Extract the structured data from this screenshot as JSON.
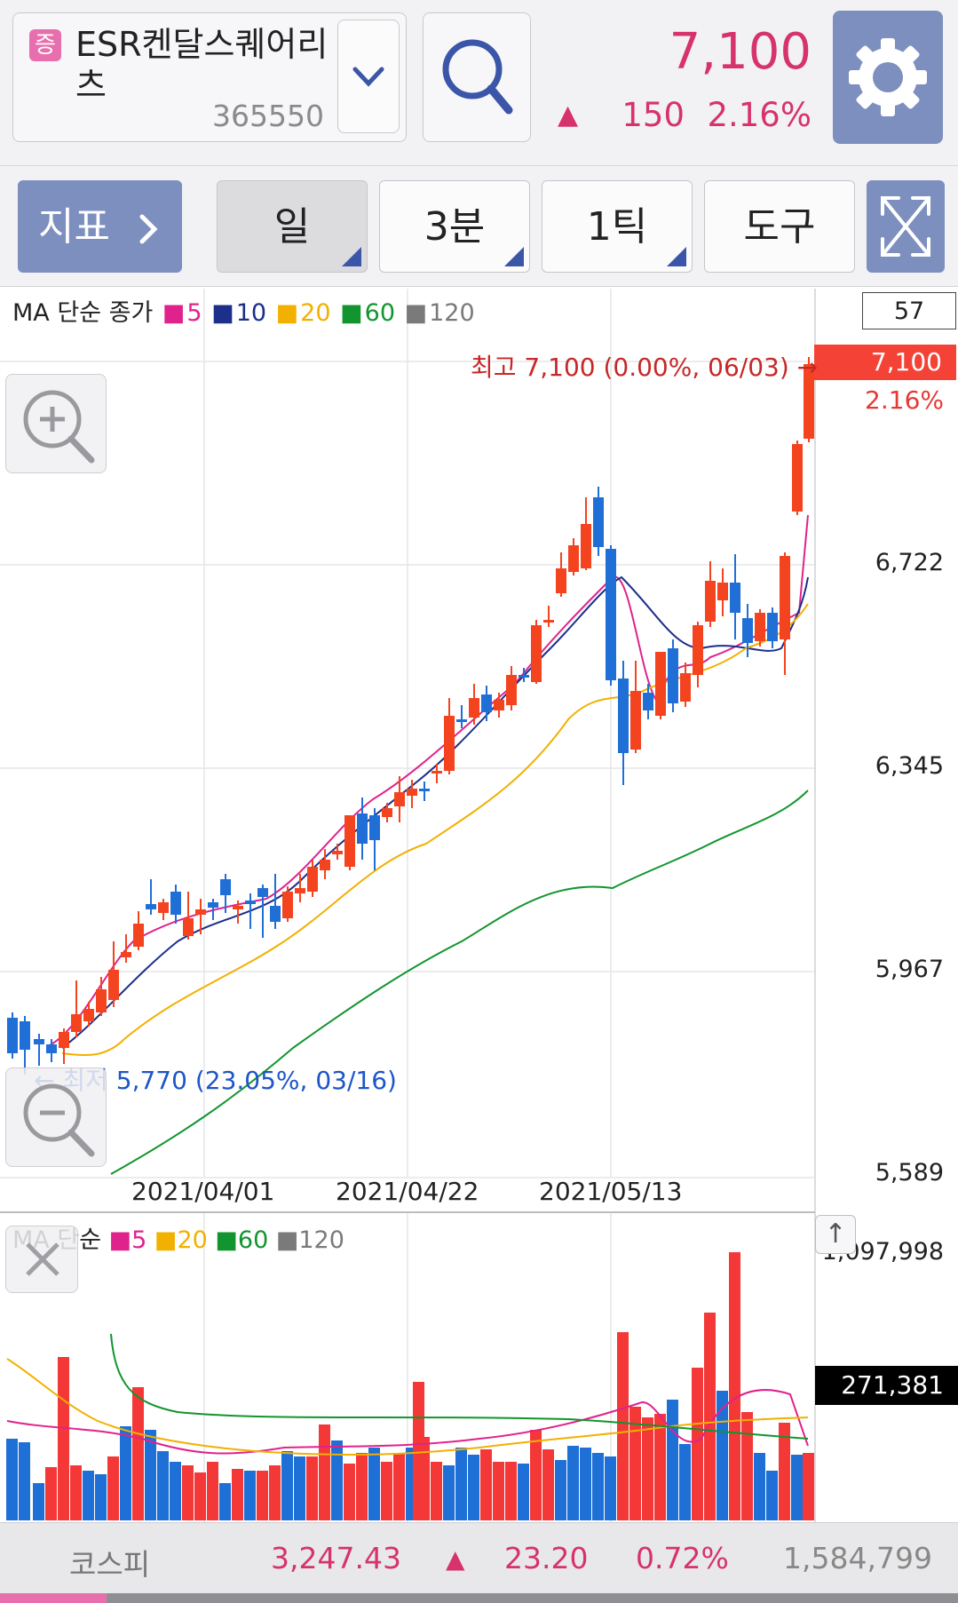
{
  "header": {
    "badge": "증",
    "stock_name": "ESR켄달스퀘어리츠",
    "stock_code": "365550",
    "price": "7,100",
    "change_arrow": "▲",
    "change": "150",
    "change_pct": "2.16%"
  },
  "toolbar": {
    "indicator_label": "지표",
    "tabs": [
      {
        "label": "일"
      },
      {
        "label": "3분"
      },
      {
        "label": "1틱"
      },
      {
        "label": "도구"
      }
    ]
  },
  "main_chart": {
    "legend_prefix": "MA 단순 종가",
    "legend": [
      {
        "label": "5",
        "color": "#e0228c"
      },
      {
        "label": "10",
        "color": "#1c2f8a"
      },
      {
        "label": "20",
        "color": "#f2b000"
      },
      {
        "label": "60",
        "color": "#12952e"
      },
      {
        "label": "120",
        "color": "#7a7a7a"
      }
    ],
    "count": "57",
    "y_axis": [
      "6,722",
      "6,345",
      "5,967",
      "5,589"
    ],
    "price_tag": "7,100",
    "pct_tag": "2.16%",
    "high_note": "최고 7,100 (0.00%, 06/03) →",
    "low_note": "← 최저 5,770 (23.05%, 03/16)",
    "dates": [
      "2021/04/01",
      "2021/04/22",
      "2021/05/13"
    ]
  },
  "volume_chart": {
    "legend_prefix": "MA 단순",
    "legend": [
      {
        "label": "5",
        "color": "#e0228c"
      },
      {
        "label": "20",
        "color": "#f2b000"
      },
      {
        "label": "60",
        "color": "#12952e"
      },
      {
        "label": "120",
        "color": "#7a7a7a"
      }
    ],
    "axis_max": "1,097,998",
    "current_tag": "271,381"
  },
  "market": {
    "name": "코스피",
    "index": "3,247.43",
    "arrow": "▲",
    "change": "23.20",
    "pct": "0.72%",
    "volume": "1,584,799"
  },
  "colors": {
    "up": "#f4431f",
    "down": "#1f6fd6",
    "vol_up": "#f43838",
    "vol_down": "#1e6fd6",
    "accent": "#7d8fbe",
    "price_red": "#d6336c"
  }
}
